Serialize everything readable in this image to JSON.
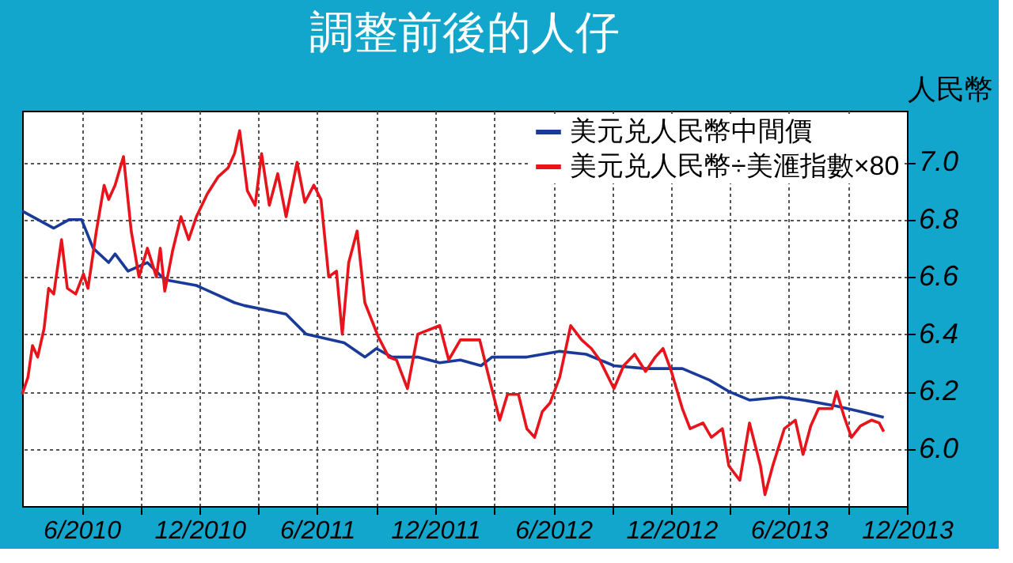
{
  "chart_data": {
    "type": "line",
    "title": "調整前後的人仔",
    "ylabel": "人民幣",
    "xlim": [
      "2010-03-01",
      "2013-12-01"
    ],
    "ylim": [
      5.8,
      7.18
    ],
    "yticks": [
      {
        "value": 6,
        "label": "6.0"
      },
      {
        "value": 6.2,
        "label": "6.2"
      },
      {
        "value": 6.4,
        "label": "6.4"
      },
      {
        "value": 6.6,
        "label": "6.6"
      },
      {
        "value": 6.8,
        "label": "6.8"
      },
      {
        "value": 7,
        "label": "7.0"
      }
    ],
    "xticks": [
      {
        "value": "2010-06-01",
        "label": "6/2010"
      },
      {
        "value": "2010-09-01",
        "label": null
      },
      {
        "value": "2010-12-01",
        "label": "12/2010"
      },
      {
        "value": "2011-03-01",
        "label": null
      },
      {
        "value": "2011-06-01",
        "label": "6/2011"
      },
      {
        "value": "2011-09-01",
        "label": null
      },
      {
        "value": "2011-12-01",
        "label": "12/2011"
      },
      {
        "value": "2012-03-01",
        "label": null
      },
      {
        "value": "2012-06-01",
        "label": "6/2012"
      },
      {
        "value": "2012-09-01",
        "label": null
      },
      {
        "value": "2012-12-01",
        "label": "12/2012"
      },
      {
        "value": "2013-03-01",
        "label": null
      },
      {
        "value": "2013-06-01",
        "label": "6/2013"
      },
      {
        "value": "2013-09-01",
        "label": null
      },
      {
        "value": "2013-12-01",
        "label": "12/2013"
      }
    ],
    "grid": true,
    "legend": "top right",
    "line_style": "solid",
    "marker": "none",
    "series": [
      {
        "name": "美元兑人民幣中間價",
        "color": "#1a3a9a",
        "x": [
          "2010-03-01",
          "2010-04-19",
          "2010-05-13",
          "2010-06-01",
          "2010-06-19",
          "2010-07-13",
          "2010-07-23",
          "2010-08-12",
          "2010-09-11",
          "2010-10-08",
          "2010-11-26",
          "2011-01-24",
          "2011-02-08",
          "2011-04-14",
          "2011-05-15",
          "2011-07-13",
          "2011-08-14",
          "2011-09-01",
          "2011-09-25",
          "2011-11-04",
          "2011-12-08",
          "2012-01-09",
          "2012-02-10",
          "2012-02-27",
          "2012-03-14",
          "2012-03-22",
          "2012-04-21",
          "2012-06-11",
          "2012-07-22",
          "2012-09-03",
          "2012-10-22",
          "2012-12-18",
          "2013-01-29",
          "2013-02-28",
          "2013-04-01",
          "2013-05-20",
          "2013-06-23",
          "2013-08-12",
          "2013-09-20",
          "2013-10-26"
        ],
        "values": [
          6.83,
          6.77,
          6.8,
          6.8,
          6.7,
          6.65,
          6.68,
          6.62,
          6.65,
          6.59,
          6.57,
          6.51,
          6.5,
          6.47,
          6.4,
          6.37,
          6.32,
          6.35,
          6.32,
          6.32,
          6.3,
          6.31,
          6.29,
          6.32,
          6.32,
          6.32,
          6.32,
          6.34,
          6.33,
          6.29,
          6.28,
          6.28,
          6.24,
          6.2,
          6.17,
          6.18,
          6.17,
          6.15,
          6.13,
          6.11
        ]
      },
      {
        "name": "美元兑人民幣÷美滙指數×80",
        "color": "#e8141c",
        "x": [
          "2010-03-01",
          "2010-03-10",
          "2010-03-17",
          "2010-03-25",
          "2010-04-04",
          "2010-04-11",
          "2010-04-19",
          "2010-05-01",
          "2010-05-10",
          "2010-05-23",
          "2010-06-04",
          "2010-06-11",
          "2010-06-24",
          "2010-07-06",
          "2010-07-13",
          "2010-07-23",
          "2010-08-05",
          "2010-08-17",
          "2010-08-29",
          "2010-09-11",
          "2010-09-25",
          "2010-10-01",
          "2010-10-08",
          "2010-10-20",
          "2010-11-02",
          "2010-11-14",
          "2010-11-26",
          "2010-12-13",
          "2010-12-30",
          "2011-01-14",
          "2011-01-24",
          "2011-02-01",
          "2011-02-13",
          "2011-02-25",
          "2011-03-07",
          "2011-03-19",
          "2011-04-01",
          "2011-04-14",
          "2011-05-01",
          "2011-05-13",
          "2011-05-27",
          "2011-06-07",
          "2011-06-19",
          "2011-07-01",
          "2011-07-10",
          "2011-07-20",
          "2011-08-02",
          "2011-08-14",
          "2011-09-04",
          "2011-09-20",
          "2011-10-02",
          "2011-10-19",
          "2011-11-04",
          "2011-12-08",
          "2011-12-22",
          "2012-01-09",
          "2012-02-08",
          "2012-02-20",
          "2012-03-10",
          "2012-03-22",
          "2012-04-08",
          "2012-04-21",
          "2012-05-03",
          "2012-05-15",
          "2012-05-27",
          "2012-06-11",
          "2012-06-28",
          "2012-07-15",
          "2012-07-30",
          "2012-08-12",
          "2012-09-03",
          "2012-09-18",
          "2012-10-05",
          "2012-10-22",
          "2012-11-06",
          "2012-11-18",
          "2012-12-01",
          "2012-12-18",
          "2012-12-30",
          "2013-01-19",
          "2013-02-01",
          "2013-02-18",
          "2013-02-28",
          "2013-03-17",
          "2013-04-01",
          "2013-04-18",
          "2013-04-25",
          "2013-05-07",
          "2013-05-25",
          "2013-06-11",
          "2013-06-23",
          "2013-07-05",
          "2013-07-17",
          "2013-08-07",
          "2013-08-14",
          "2013-08-26",
          "2013-09-06",
          "2013-09-20",
          "2013-10-07",
          "2013-10-19",
          "2013-10-26"
        ],
        "values": [
          6.19,
          6.25,
          6.36,
          6.32,
          6.42,
          6.56,
          6.54,
          6.73,
          6.56,
          6.54,
          6.61,
          6.56,
          6.76,
          6.92,
          6.87,
          6.92,
          7.02,
          6.76,
          6.6,
          6.7,
          6.6,
          6.7,
          6.55,
          6.69,
          6.81,
          6.73,
          6.81,
          6.89,
          6.95,
          6.98,
          7.03,
          7.11,
          6.9,
          6.85,
          7.03,
          6.85,
          6.96,
          6.81,
          7.0,
          6.86,
          6.92,
          6.87,
          6.6,
          6.62,
          6.4,
          6.65,
          6.76,
          6.51,
          6.39,
          6.32,
          6.31,
          6.21,
          6.4,
          6.43,
          6.31,
          6.38,
          6.38,
          6.27,
          6.1,
          6.19,
          6.19,
          6.07,
          6.04,
          6.13,
          6.16,
          6.25,
          6.43,
          6.38,
          6.35,
          6.31,
          6.21,
          6.29,
          6.33,
          6.27,
          6.32,
          6.35,
          6.27,
          6.14,
          6.07,
          6.09,
          6.04,
          6.07,
          5.94,
          5.89,
          6.09,
          5.94,
          5.84,
          5.94,
          6.07,
          6.1,
          5.98,
          6.08,
          6.14,
          6.14,
          6.2,
          6.11,
          6.04,
          6.08,
          6.1,
          6.09,
          6.06
        ]
      }
    ]
  }
}
